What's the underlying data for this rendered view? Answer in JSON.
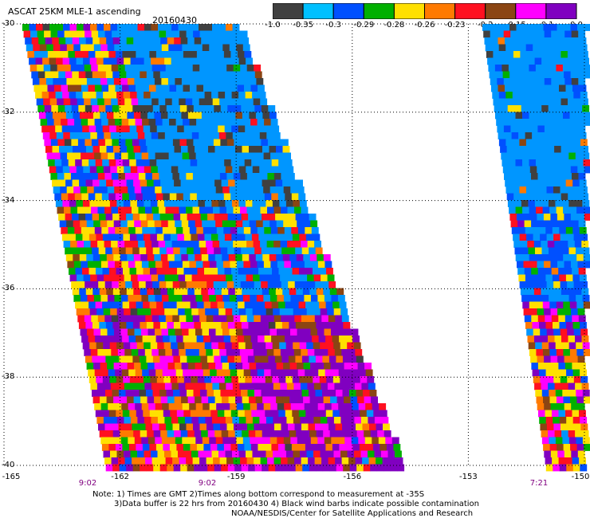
{
  "title": "ASCAT 25KM MLE-1 ascending",
  "date": "20160430",
  "colorbar": {
    "colors": [
      "#404040",
      "#00c0ff",
      "#0050ff",
      "#00b000",
      "#ffe000",
      "#ff7a00",
      "#ff1020",
      "#8b4513",
      "#ff00ff",
      "#8000c0"
    ],
    "labels": [
      "-1.0",
      "-0.35",
      "-0.3",
      "-0.29",
      "-0.28",
      "-0.26",
      "-0.23",
      "-0.2",
      "-0.15",
      "-0.1",
      "0.0"
    ]
  },
  "map": {
    "lat_labels": [
      "-30",
      "-32",
      "-34",
      "-36",
      "-38",
      "-40"
    ],
    "lon_labels": [
      "-165",
      "-162",
      "-159",
      "-156",
      "-153",
      "-150"
    ],
    "pass_times": [
      "9:02",
      "9:02",
      "7:21"
    ],
    "swath_palette": [
      "#0096ff",
      "#0050ff",
      "#ffe000",
      "#ff1020",
      "#00b000",
      "#ff7a00",
      "#8000c0",
      "#ff00ff",
      "#8b4513",
      "#404040"
    ]
  },
  "notes": [
    "Note: 1) Times are GMT 2)Times along bottom correspond to measurement at -35S",
    "3)Data buffer is 22 hrs from 20160430 4) Black wind barbs indicate possible contamination",
    "NOAA/NESDIS/Center for Satellite Applications and Research"
  ]
}
